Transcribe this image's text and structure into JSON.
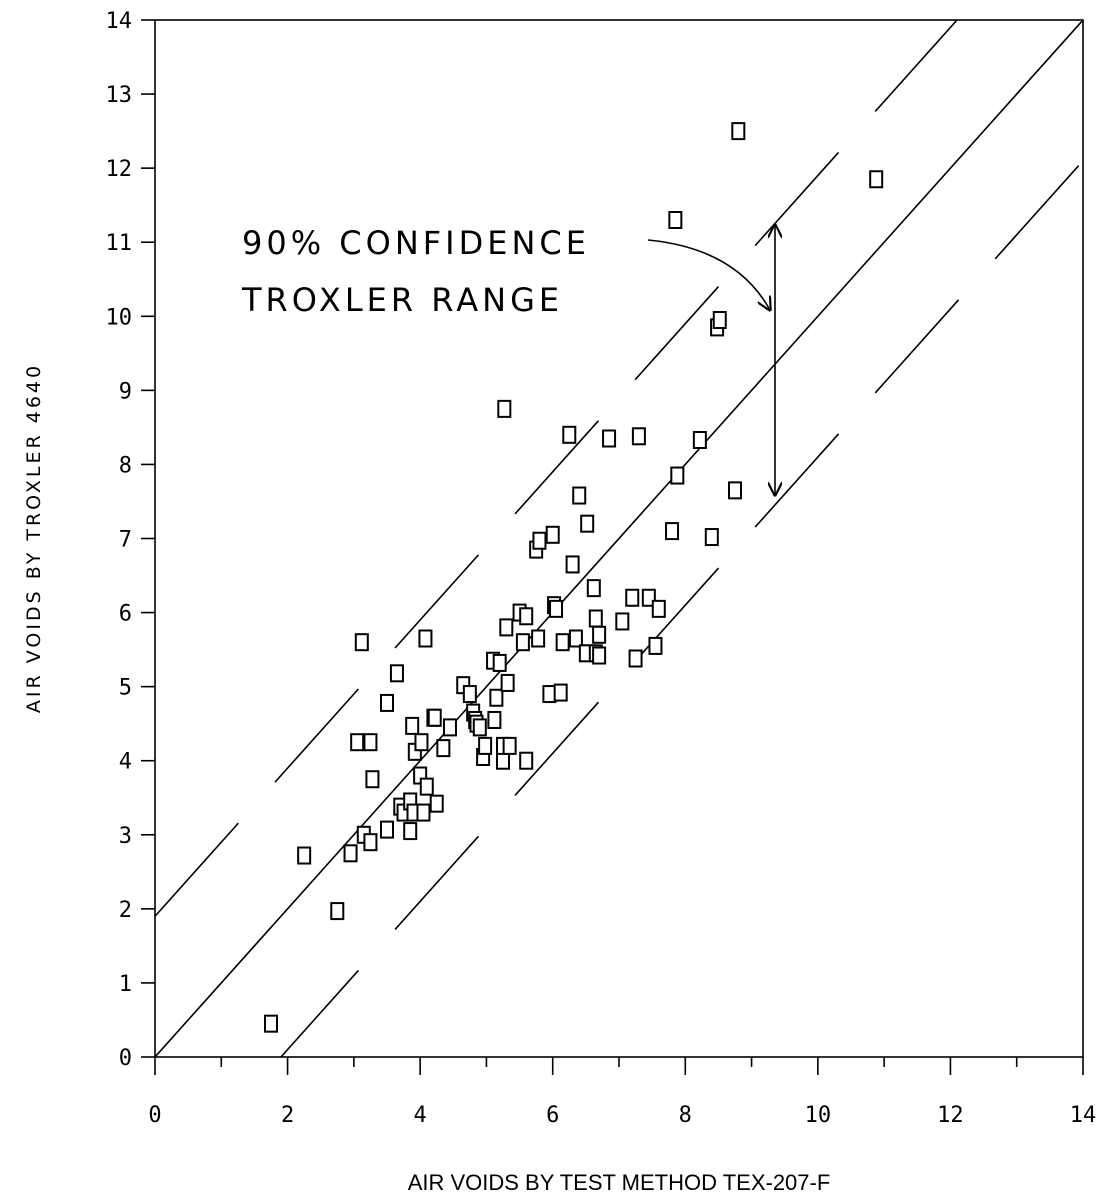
{
  "chart_data": {
    "type": "scatter",
    "title": "",
    "xlabel": "AIR VOIDS BY TEST METHOD TEX-207-F",
    "ylabel": "AIR VOIDS BY TROXLER 4640",
    "xlim": [
      0,
      14
    ],
    "ylim": [
      0,
      14
    ],
    "x_ticks": [
      "0",
      "2",
      "4",
      "6",
      "8",
      "10",
      "12",
      "14"
    ],
    "y_ticks": [
      "0",
      "1",
      "2",
      "3",
      "4",
      "5",
      "6",
      "7",
      "8",
      "9",
      "10",
      "11",
      "12",
      "13",
      "14"
    ],
    "grid": false,
    "annotation": [
      "90% CONFIDENCE",
      "TROXLER RANGE"
    ],
    "lines": [
      {
        "type": "solid",
        "slope": 1,
        "intercept": 0
      },
      {
        "type": "dashed",
        "slope": 1,
        "intercept": 1.9
      },
      {
        "type": "dashed",
        "slope": 1,
        "intercept": -1.9
      }
    ],
    "points": [
      [
        1.75,
        0.45
      ],
      [
        2.25,
        2.72
      ],
      [
        2.75,
        1.97
      ],
      [
        2.95,
        2.75
      ],
      [
        3.05,
        4.25
      ],
      [
        3.12,
        5.6
      ],
      [
        3.15,
        3.0
      ],
      [
        3.25,
        2.9
      ],
      [
        3.25,
        4.25
      ],
      [
        3.28,
        3.75
      ],
      [
        3.5,
        3.07
      ],
      [
        3.5,
        4.78
      ],
      [
        3.65,
        5.18
      ],
      [
        3.7,
        3.38
      ],
      [
        3.75,
        3.3
      ],
      [
        3.85,
        3.05
      ],
      [
        3.85,
        3.45
      ],
      [
        3.88,
        4.47
      ],
      [
        3.9,
        3.3
      ],
      [
        3.92,
        4.12
      ],
      [
        4.0,
        3.8
      ],
      [
        4.02,
        4.25
      ],
      [
        4.05,
        3.3
      ],
      [
        4.08,
        5.65
      ],
      [
        4.1,
        3.65
      ],
      [
        4.2,
        4.58
      ],
      [
        4.22,
        4.58
      ],
      [
        4.25,
        3.42
      ],
      [
        4.35,
        4.17
      ],
      [
        4.45,
        4.45
      ],
      [
        4.65,
        5.02
      ],
      [
        4.75,
        4.9
      ],
      [
        4.8,
        4.65
      ],
      [
        4.83,
        4.55
      ],
      [
        4.85,
        4.5
      ],
      [
        4.9,
        4.45
      ],
      [
        4.95,
        4.05
      ],
      [
        4.98,
        4.2
      ],
      [
        5.1,
        5.35
      ],
      [
        5.12,
        4.55
      ],
      [
        5.15,
        4.85
      ],
      [
        5.2,
        5.32
      ],
      [
        5.25,
        4.0
      ],
      [
        5.25,
        4.2
      ],
      [
        5.27,
        8.75
      ],
      [
        5.3,
        5.8
      ],
      [
        5.32,
        5.05
      ],
      [
        5.35,
        4.2
      ],
      [
        5.5,
        6.0
      ],
      [
        5.55,
        5.6
      ],
      [
        5.6,
        4.0
      ],
      [
        5.6,
        5.95
      ],
      [
        5.75,
        6.85
      ],
      [
        5.78,
        5.65
      ],
      [
        5.8,
        6.97
      ],
      [
        5.95,
        4.9
      ],
      [
        6.0,
        7.05
      ],
      [
        6.02,
        6.1
      ],
      [
        6.05,
        6.05
      ],
      [
        6.12,
        4.92
      ],
      [
        6.15,
        5.6
      ],
      [
        6.25,
        8.4
      ],
      [
        6.3,
        6.65
      ],
      [
        6.35,
        5.65
      ],
      [
        6.4,
        7.58
      ],
      [
        6.5,
        5.45
      ],
      [
        6.52,
        7.2
      ],
      [
        6.62,
        6.33
      ],
      [
        6.65,
        5.92
      ],
      [
        6.65,
        5.45
      ],
      [
        6.7,
        5.7
      ],
      [
        6.7,
        5.42
      ],
      [
        6.85,
        8.35
      ],
      [
        7.05,
        5.88
      ],
      [
        7.2,
        6.2
      ],
      [
        7.25,
        5.38
      ],
      [
        7.3,
        8.38
      ],
      [
        7.45,
        6.2
      ],
      [
        7.55,
        5.55
      ],
      [
        7.6,
        6.05
      ],
      [
        7.8,
        7.1
      ],
      [
        7.85,
        11.3
      ],
      [
        7.88,
        7.85
      ],
      [
        8.22,
        8.33
      ],
      [
        8.4,
        7.02
      ],
      [
        8.48,
        9.85
      ],
      [
        8.52,
        9.95
      ],
      [
        8.75,
        7.65
      ],
      [
        8.8,
        12.5
      ],
      [
        10.88,
        11.85
      ]
    ]
  }
}
